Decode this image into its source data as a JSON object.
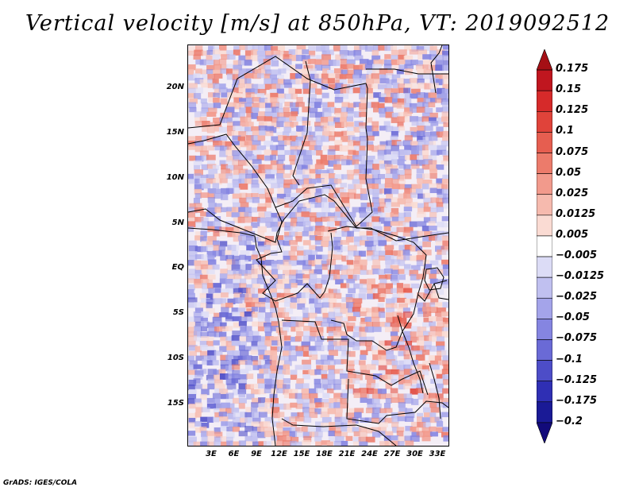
{
  "title": "Vertical velocity [m/s] at 850hPa, VT: 2019092512",
  "footer": "GrADS: IGES/COLA",
  "map": {
    "y_ticks": [
      "20N",
      "15N",
      "10N",
      "5N",
      "EQ",
      "5S",
      "10S",
      "15S"
    ],
    "x_ticks": [
      "3E",
      "6E",
      "9E",
      "12E",
      "15E",
      "18E",
      "21E",
      "24E",
      "27E",
      "30E",
      "33E"
    ]
  },
  "colorbar": {
    "labels": [
      "0.175",
      "0.15",
      "0.125",
      "0.1",
      "0.075",
      "0.05",
      "0.025",
      "0.0125",
      "0.005",
      "−0.005",
      "−0.0125",
      "−0.025",
      "−0.05",
      "−0.075",
      "−0.1",
      "−0.125",
      "−0.175",
      "−0.2"
    ],
    "colors": [
      "#a50f15",
      "#c0161f",
      "#d62a2a",
      "#e0433a",
      "#e65e50",
      "#ec7b6b",
      "#f29a8c",
      "#f6baae",
      "#fadbd3",
      "#ffffff",
      "#dcdcf6",
      "#c0c0f0",
      "#a4a4ea",
      "#8585e1",
      "#6a6ad6",
      "#4d4dc8",
      "#2f2fb4",
      "#1a1a96",
      "#120a7a"
    ]
  },
  "colors": {
    "positive": "#e0433a",
    "negative": "#6a6ad6",
    "border": "#000000"
  }
}
